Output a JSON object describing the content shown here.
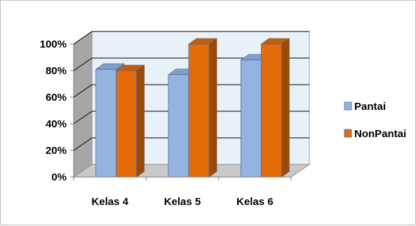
{
  "chart_data": {
    "type": "bar",
    "categories": [
      "Kelas 4",
      "Kelas 5",
      "Kelas 6"
    ],
    "series": [
      {
        "name": "Pantai",
        "values": [
          81,
          77,
          88
        ],
        "color": "#95b3e0",
        "side_color": "#6f8fbf",
        "top_color": "#7ea0cf"
      },
      {
        "name": "NonPantai",
        "values": [
          80,
          100,
          100
        ],
        "color": "#e46c0a",
        "side_color": "#9c4a07",
        "top_color": "#c65c08"
      }
    ],
    "y_ticks": [
      "0%",
      "20%",
      "40%",
      "60%",
      "80%",
      "100%"
    ],
    "y_tick_values": [
      0,
      20,
      40,
      60,
      80,
      100
    ],
    "ylim": [
      0,
      100
    ],
    "title": "",
    "xlabel": "",
    "ylabel": "",
    "grid": true,
    "legend_position": "right",
    "colors": {
      "wall": "#e8f0f8",
      "side_wall": "#a6a6a6",
      "floor": "#c9c9c9",
      "grid": "#000000",
      "axis": "#7f7f7f"
    }
  }
}
